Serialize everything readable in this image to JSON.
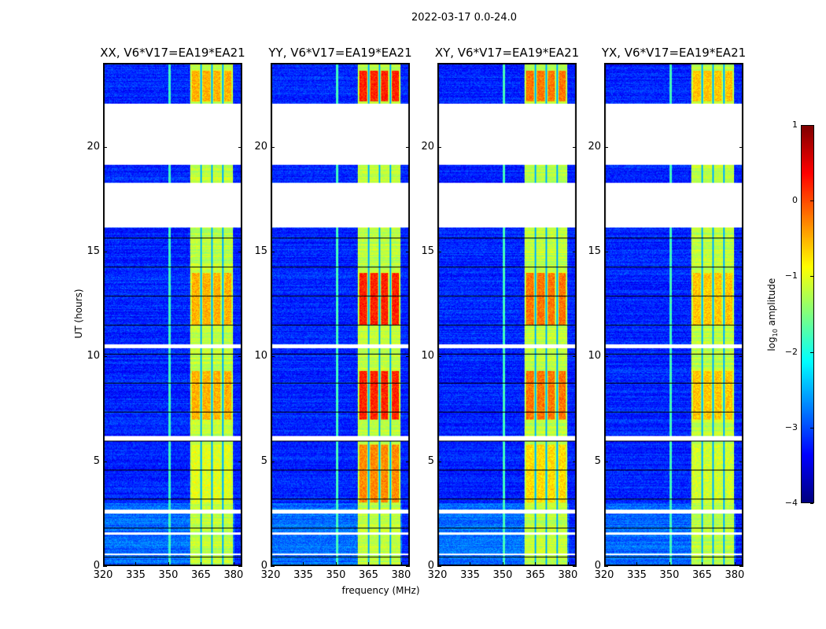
{
  "chart_data": {
    "type": "heatmap",
    "title": "2022-03-17 0.0-24.0",
    "xlabel": "frequency (MHz)",
    "ylabel": "UT (hours)",
    "xlim": [
      320,
      384
    ],
    "ylim": [
      0,
      24
    ],
    "xticks": [
      320,
      335,
      350,
      365,
      380
    ],
    "yticks": [
      0,
      5,
      10,
      15,
      20
    ],
    "colorbar": {
      "label_prefix": "log",
      "label_sub": "10",
      "label_suffix": " amplitude",
      "range": [
        -4,
        1
      ],
      "ticks": [
        "1",
        "0",
        "−1",
        "−2",
        "−3",
        "−4"
      ],
      "tick_values": [
        1,
        0,
        -1,
        -2,
        -3,
        -4
      ],
      "colormap": "jet"
    },
    "data_gaps_ut": [
      [
        19.2,
        22.1
      ],
      [
        16.2,
        18.3
      ],
      [
        10.4,
        10.6
      ],
      [
        6.0,
        6.2
      ],
      [
        2.5,
        2.7
      ],
      [
        1.5,
        1.6
      ],
      [
        0.5,
        0.6
      ]
    ],
    "bright_band_mhz": [
      360,
      380
    ],
    "subband_edges_mhz": [
      365,
      370,
      375
    ],
    "rfi_line_mhz": 350.5,
    "baseline_level_log": -3.2,
    "band_level_log": -1.2,
    "panels": [
      {
        "title": "XX, V6*V17=EA19*EA21",
        "peak_level_log": -0.5
      },
      {
        "title": "YY, V6*V17=EA19*EA21",
        "peak_level_log": 0.2
      },
      {
        "title": "XY, V6*V17=EA19*EA21",
        "peak_level_log": -0.2
      },
      {
        "title": "YX, V6*V17=EA19*EA21",
        "peak_level_log": -0.6
      }
    ]
  }
}
